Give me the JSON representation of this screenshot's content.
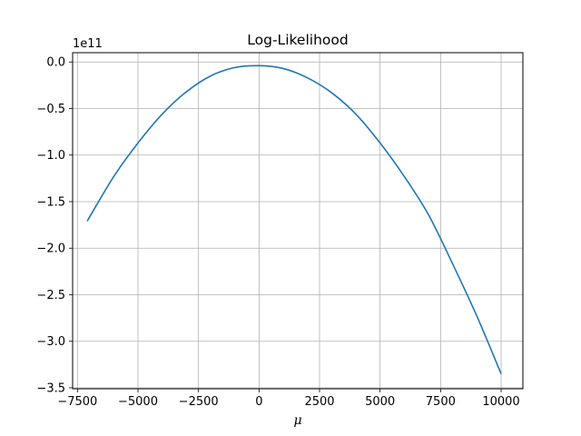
{
  "chart_data": {
    "type": "line",
    "title": "Log-Likelihood",
    "xlabel": "μ",
    "ylabel": "",
    "y_offset_label": "1e11",
    "xlim": [
      -7700,
      10900
    ],
    "ylim": [
      -3.51,
      0.1
    ],
    "xticks": [
      -7500,
      -5000,
      -2500,
      0,
      2500,
      5000,
      7500,
      10000
    ],
    "xtick_labels": [
      "−7500",
      "−5000",
      "−2500",
      "0",
      "2500",
      "5000",
      "7500",
      "10000"
    ],
    "yticks": [
      0.0,
      -0.5,
      -1.0,
      -1.5,
      -2.0,
      -2.5,
      -3.0,
      -3.5
    ],
    "ytick_labels": [
      "0.0",
      "−0.5",
      "−1.0",
      "−1.5",
      "−2.0",
      "−2.5",
      "−3.0",
      "−3.5"
    ],
    "grid": true,
    "series": [
      {
        "color": "#1f77b4",
        "x": [
          -7100,
          -6000,
          -5000,
          -4000,
          -3000,
          -2000,
          -1000,
          0,
          1000,
          2000,
          3000,
          4000,
          5000,
          6000,
          7000,
          8000,
          9000,
          10000
        ],
        "y": [
          -1.71,
          -1.23,
          -0.87,
          -0.56,
          -0.32,
          -0.15,
          -0.06,
          -0.04,
          -0.07,
          -0.17,
          -0.33,
          -0.56,
          -0.87,
          -1.23,
          -1.64,
          -2.17,
          -2.73,
          -3.35
        ]
      }
    ]
  }
}
